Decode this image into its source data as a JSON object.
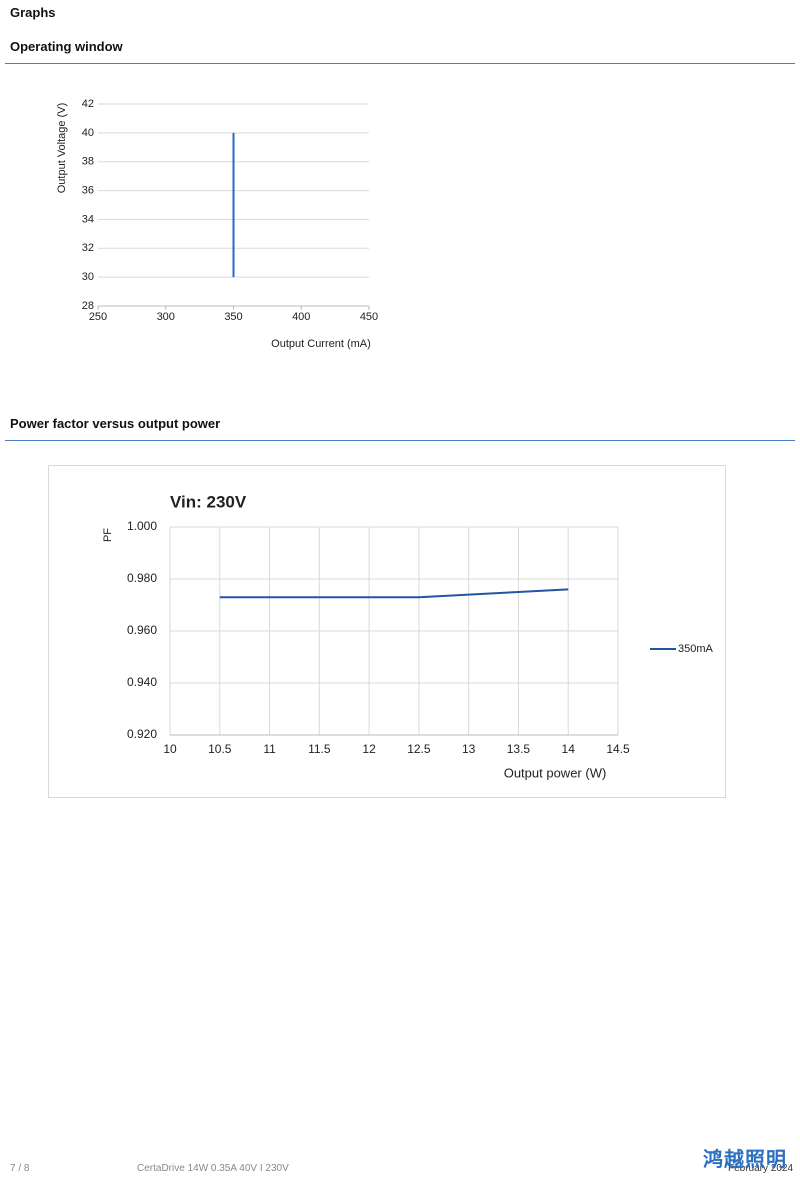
{
  "heading": "Graphs",
  "section_titles": [
    "Operating window",
    "Power factor versus output power"
  ],
  "chart_data": [
    {
      "type": "line",
      "x": [
        350,
        350
      ],
      "values": [
        30,
        40
      ],
      "color": "#1f6fc5",
      "xlabel": "Output Current (mA)",
      "ylabel": "Output Voltage (V)",
      "xlim": [
        250,
        450
      ],
      "xticks": [
        250,
        300,
        350,
        400,
        450
      ],
      "ylim": [
        28,
        42
      ],
      "yticks": [
        28,
        30,
        32,
        34,
        36,
        38,
        40,
        42
      ],
      "grid": "y"
    },
    {
      "type": "line",
      "title": "Vin: 230V",
      "x": [
        10.5,
        11,
        11.5,
        12,
        12.5,
        13,
        13.5,
        14
      ],
      "series": [
        {
          "name": "350mA",
          "color": "#2255a4",
          "values": [
            0.973,
            0.973,
            0.973,
            0.973,
            0.973,
            0.974,
            0.975,
            0.976
          ]
        }
      ],
      "xlabel": "Output power (W)",
      "ylabel": "PF",
      "xlim": [
        10,
        14.5
      ],
      "xticks": [
        10,
        10.5,
        11,
        11.5,
        12,
        12.5,
        13,
        13.5,
        14,
        14.5
      ],
      "ylim": [
        0.92,
        1.0
      ],
      "yticks": [
        {
          "value": 0.92,
          "label": "0.920"
        },
        {
          "value": 0.94,
          "label": "0.940"
        },
        {
          "value": 0.96,
          "label": "0.960"
        },
        {
          "value": 0.98,
          "label": "0.980"
        },
        {
          "value": 1.0,
          "label": "1.000"
        }
      ],
      "grid": "both",
      "legend": "right"
    }
  ],
  "footer": {
    "page": "7 / 8",
    "product": "CertaDrive 14W 0.35A 40V I 230V",
    "date": "February 2024",
    "watermark": "鸿越照明"
  }
}
